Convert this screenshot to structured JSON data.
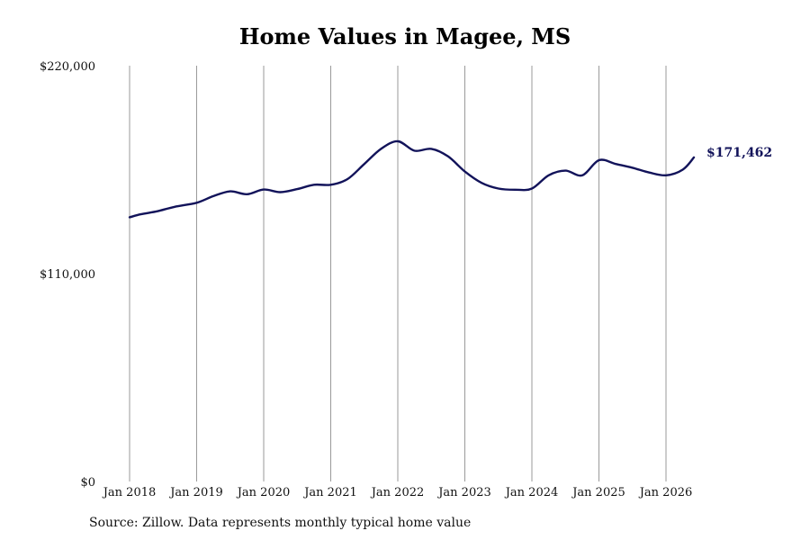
{
  "chart_data": {
    "type": "line",
    "title": "Home Values in Magee, MS",
    "xlabel": "",
    "ylabel": "",
    "grid": "vertical",
    "legend": "none",
    "ylim": [
      0,
      220000
    ],
    "y_ticks": [
      0,
      110000,
      220000
    ],
    "y_tick_labels": [
      "$0",
      "$110,000",
      "$220,000"
    ],
    "x_ticks": [
      "2018-01",
      "2019-01",
      "2020-01",
      "2021-01",
      "2022-01",
      "2023-01",
      "2024-01",
      "2025-01",
      "2026-01"
    ],
    "x_tick_labels": [
      "Jan 2018",
      "Jan 2019",
      "Jan 2020",
      "Jan 2021",
      "Jan 2022",
      "Jan 2023",
      "Jan 2024",
      "Jan 2025",
      "Jan 2026"
    ],
    "xlim": [
      "2018-01",
      "2026-06"
    ],
    "series": [
      {
        "color": "#12135a",
        "x": [
          "2018-01",
          "2018-03",
          "2018-06",
          "2018-09",
          "2019-01",
          "2019-04",
          "2019-07",
          "2019-10",
          "2020-01",
          "2020-04",
          "2020-07",
          "2020-10",
          "2021-01",
          "2021-04",
          "2021-07",
          "2021-10",
          "2022-01",
          "2022-04",
          "2022-07",
          "2022-10",
          "2023-01",
          "2023-04",
          "2023-07",
          "2023-10",
          "2024-01",
          "2024-04",
          "2024-07",
          "2024-10",
          "2025-01",
          "2025-04",
          "2025-07",
          "2025-10",
          "2026-01",
          "2026-04",
          "2026-06"
        ],
        "values": [
          139800,
          141400,
          143000,
          145300,
          147500,
          151000,
          153500,
          152000,
          154500,
          153100,
          154700,
          157000,
          157000,
          160000,
          168000,
          176000,
          180000,
          175000,
          176000,
          172000,
          164000,
          158000,
          155000,
          154400,
          155000,
          162000,
          164500,
          162000,
          170000,
          168000,
          166000,
          163500,
          162000,
          165000,
          171462
        ]
      }
    ],
    "end_label": "$171,462"
  },
  "source_note": "Source: Zillow. Data represents monthly typical home value"
}
